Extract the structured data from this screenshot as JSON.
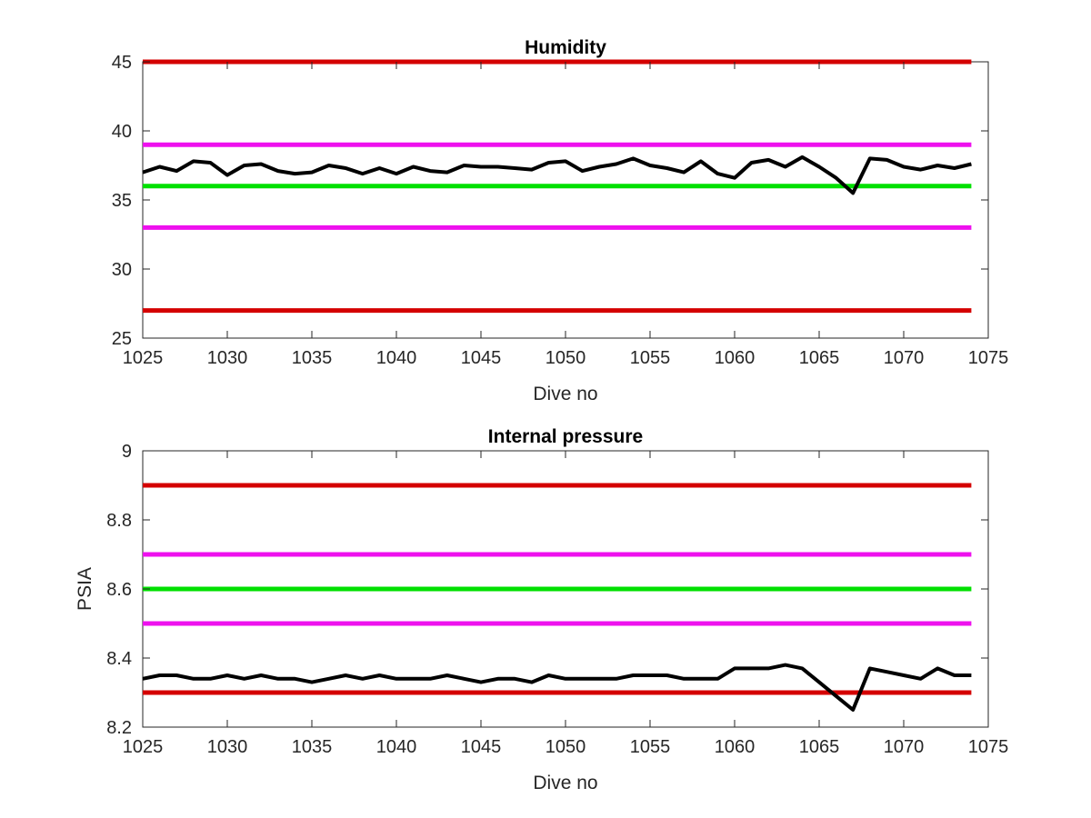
{
  "colors": {
    "red": "#d40000",
    "magenta": "#ee11ee",
    "green": "#00e000",
    "data": "#000000",
    "axis": "#262626"
  },
  "chart_data": [
    {
      "type": "line",
      "title": "Humidity",
      "xlabel": "Dive no",
      "ylabel": "",
      "xlim": [
        1025,
        1075
      ],
      "ylim": [
        25,
        45
      ],
      "xticks": [
        "1025",
        "1030",
        "1035",
        "1040",
        "1045",
        "1050",
        "1055",
        "1060",
        "1065",
        "1070",
        "1075"
      ],
      "yticks": [
        "25",
        "30",
        "35",
        "40",
        "45"
      ],
      "grid": false,
      "reference_lines": [
        {
          "y": 45,
          "color": "red"
        },
        {
          "y": 39,
          "color": "magenta"
        },
        {
          "y": 36,
          "color": "green"
        },
        {
          "y": 33,
          "color": "magenta"
        },
        {
          "y": 27,
          "color": "red"
        }
      ],
      "series": [
        {
          "color": "black",
          "x": [
            1025,
            1026,
            1027,
            1028,
            1029,
            1030,
            1031,
            1032,
            1033,
            1034,
            1035,
            1036,
            1037,
            1038,
            1039,
            1040,
            1041,
            1042,
            1043,
            1044,
            1045,
            1046,
            1047,
            1048,
            1049,
            1050,
            1051,
            1052,
            1053,
            1054,
            1055,
            1056,
            1057,
            1058,
            1059,
            1060,
            1061,
            1062,
            1063,
            1064,
            1065,
            1066,
            1067,
            1068,
            1069,
            1070,
            1071,
            1072,
            1073,
            1074
          ],
          "values": [
            37.0,
            37.4,
            37.1,
            37.8,
            37.7,
            36.8,
            37.5,
            37.6,
            37.1,
            36.9,
            37.0,
            37.5,
            37.3,
            36.9,
            37.3,
            36.9,
            37.4,
            37.1,
            37.0,
            37.5,
            37.4,
            37.4,
            37.3,
            37.2,
            37.7,
            37.8,
            37.1,
            37.4,
            37.6,
            38.0,
            37.5,
            37.3,
            37.0,
            37.8,
            36.9,
            36.6,
            37.7,
            37.9,
            37.4,
            38.1,
            37.4,
            36.6,
            35.5,
            38.0,
            37.9,
            37.4,
            37.2,
            37.5,
            37.3,
            37.6
          ]
        }
      ]
    },
    {
      "type": "line",
      "title": "Internal pressure",
      "xlabel": "Dive no",
      "ylabel": "PSIA",
      "xlim": [
        1025,
        1075
      ],
      "ylim": [
        8.2,
        9.0
      ],
      "xticks": [
        "1025",
        "1030",
        "1035",
        "1040",
        "1045",
        "1050",
        "1055",
        "1060",
        "1065",
        "1070",
        "1075"
      ],
      "yticks": [
        "8.2",
        "8.4",
        "8.6",
        "8.8",
        "9"
      ],
      "grid": false,
      "reference_lines": [
        {
          "y": 8.9,
          "color": "red"
        },
        {
          "y": 8.7,
          "color": "magenta"
        },
        {
          "y": 8.6,
          "color": "green"
        },
        {
          "y": 8.5,
          "color": "magenta"
        },
        {
          "y": 8.3,
          "color": "red"
        }
      ],
      "series": [
        {
          "color": "black",
          "x": [
            1025,
            1026,
            1027,
            1028,
            1029,
            1030,
            1031,
            1032,
            1033,
            1034,
            1035,
            1036,
            1037,
            1038,
            1039,
            1040,
            1041,
            1042,
            1043,
            1044,
            1045,
            1046,
            1047,
            1048,
            1049,
            1050,
            1051,
            1052,
            1053,
            1054,
            1055,
            1056,
            1057,
            1058,
            1059,
            1060,
            1061,
            1062,
            1063,
            1064,
            1065,
            1066,
            1067,
            1068,
            1069,
            1070,
            1071,
            1072,
            1073,
            1074
          ],
          "values": [
            8.34,
            8.35,
            8.35,
            8.34,
            8.34,
            8.35,
            8.34,
            8.35,
            8.34,
            8.34,
            8.33,
            8.34,
            8.35,
            8.34,
            8.35,
            8.34,
            8.34,
            8.34,
            8.35,
            8.34,
            8.33,
            8.34,
            8.34,
            8.33,
            8.35,
            8.34,
            8.34,
            8.34,
            8.34,
            8.35,
            8.35,
            8.35,
            8.34,
            8.34,
            8.34,
            8.37,
            8.37,
            8.37,
            8.38,
            8.37,
            8.33,
            8.29,
            8.25,
            8.37,
            8.36,
            8.35,
            8.34,
            8.37,
            8.35,
            8.35
          ]
        }
      ]
    }
  ]
}
